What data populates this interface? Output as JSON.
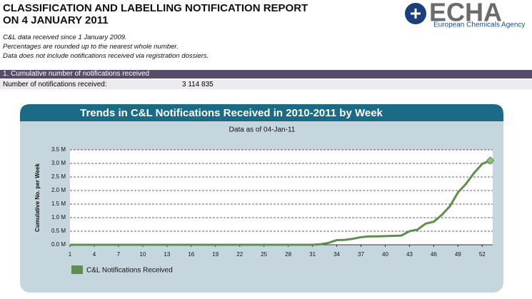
{
  "header": {
    "title_line1": "CLASSIFICATION AND LABELLING NOTIFICATION REPORT",
    "title_line2": "ON 4 JANUARY 2011",
    "logo_text": "ECHA",
    "logo_subtitle": "European Chemicals Agency"
  },
  "notes": [
    "C&L data received since 1 January 2009.",
    "Percentages are rounded up to the nearest whole number.",
    "Data does not include notifications received via registration dossiers."
  ],
  "section": {
    "title": "1. Cumulative number of notifications received",
    "label": "Number of notifications received:",
    "value": "3 114 835"
  },
  "chart_data": {
    "type": "line",
    "title": "Trends in C&L Notifications Received in 2010-2011 by Week",
    "subtitle": "Data as of 04-Jan-11",
    "y_label": "Cumulative No. per Week",
    "x": [
      1,
      2,
      3,
      4,
      5,
      6,
      7,
      8,
      9,
      10,
      11,
      12,
      13,
      14,
      15,
      16,
      17,
      18,
      19,
      20,
      21,
      22,
      23,
      24,
      25,
      26,
      27,
      28,
      29,
      30,
      31,
      32,
      33,
      34,
      35,
      36,
      37,
      38,
      39,
      40,
      41,
      42,
      43,
      44,
      45,
      46,
      47,
      48,
      49,
      50,
      51,
      52,
      53
    ],
    "series": [
      {
        "name": "C&L Notifications Received",
        "color": "#5e8f4f",
        "values": [
          0,
          0,
          0,
          0,
          0,
          0,
          0,
          0,
          0,
          0,
          0,
          0,
          0,
          0,
          0,
          0,
          0,
          0,
          0,
          0,
          0,
          0,
          0,
          0,
          0,
          0,
          0,
          0,
          0,
          0,
          0,
          0.02,
          0.07,
          0.17,
          0.18,
          0.22,
          0.28,
          0.31,
          0.31,
          0.32,
          0.33,
          0.34,
          0.5,
          0.56,
          0.78,
          0.85,
          1.1,
          1.42,
          1.93,
          2.25,
          2.65,
          2.98,
          3.11
        ]
      }
    ],
    "xlim": [
      1,
      53.3
    ],
    "xticks": [
      1,
      4,
      7,
      10,
      13,
      16,
      19,
      22,
      25,
      28,
      31,
      34,
      37,
      40,
      43,
      46,
      49,
      52
    ],
    "ylim": [
      0,
      3.5
    ],
    "yticks": [
      {
        "value": 0,
        "label": "0.0 M"
      },
      {
        "value": 0.5,
        "label": "0.5 M"
      },
      {
        "value": 1,
        "label": "1.0 M"
      },
      {
        "value": 1.5,
        "label": "1.5 M"
      },
      {
        "value": 2,
        "label": "2.0 M"
      },
      {
        "value": 2.5,
        "label": "2.5 M"
      },
      {
        "value": 3,
        "label": "3.0 M"
      },
      {
        "value": 3.5,
        "label": "3.5 M"
      }
    ],
    "grid": true
  }
}
